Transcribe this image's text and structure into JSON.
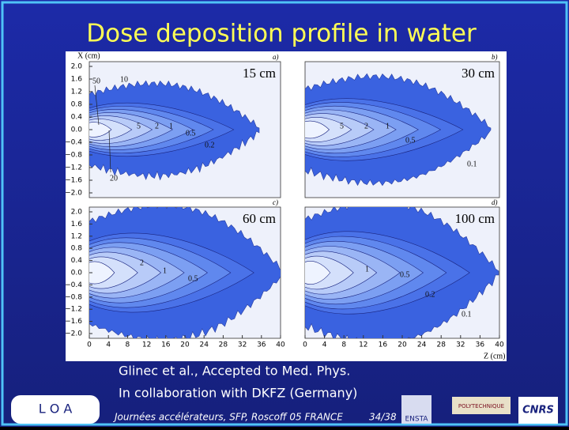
{
  "title": "Dose deposition profile in water",
  "figure": {
    "y_axis_label": "X (cm)",
    "x_axis_label": "Z (cm)",
    "y_ticks": [
      "2.0",
      "1.6",
      "1.2",
      "0.8",
      "0.4",
      "0.0",
      "−0.4",
      "−0.8",
      "−1.2",
      "−1.6",
      "−2.0"
    ],
    "x_ticks": [
      "0",
      "4",
      "8",
      "12",
      "16",
      "20",
      "24",
      "28",
      "32",
      "36",
      "40"
    ],
    "panels": [
      {
        "letter": "a)",
        "label": "15 cm",
        "contours": [
          "50",
          "10",
          "5",
          "2",
          "1",
          "0.5",
          "0.2",
          "20"
        ]
      },
      {
        "letter": "b)",
        "label": "30 cm",
        "contours": [
          "5",
          "2",
          "1",
          "0.5",
          "0.1"
        ]
      },
      {
        "letter": "c)",
        "label": "60 cm",
        "contours": [
          "2",
          "1",
          "0.5"
        ]
      },
      {
        "letter": "d)",
        "label": "100 cm",
        "contours": [
          "1",
          "0.5",
          "0.2",
          "0.1"
        ]
      }
    ]
  },
  "citation": [
    "Glinec et al., Accepted to Med. Phys.",
    "In collaboration with DKFZ (Germany)"
  ],
  "footer": {
    "event": "Journées accélérateurs, SFP, Roscoff 05 FRANCE",
    "page": "34/38",
    "logos": [
      "L O A",
      "POLYTECHNIQUE",
      "ENSTA",
      "CNRS"
    ]
  }
}
